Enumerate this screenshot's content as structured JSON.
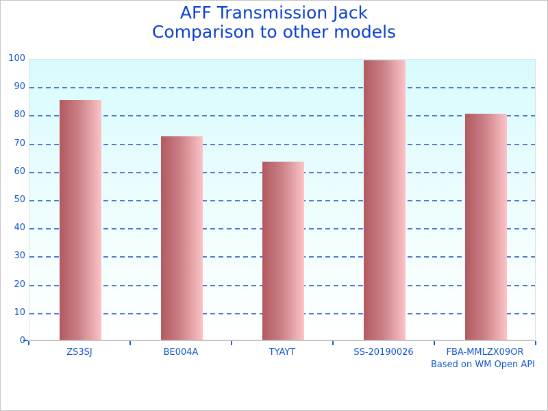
{
  "title": {
    "line1": "AFF Transmission Jack",
    "line2": "Comparison to other models"
  },
  "footer": {
    "note": "Based on WM Open API"
  },
  "chart_data": {
    "type": "bar",
    "title": "AFF Transmission Jack — Comparison to other models",
    "categories": [
      "ZS3SJ",
      "BE004A",
      "TYAYT",
      "SS-20190026",
      "FBA-MMLZX09OR"
    ],
    "values": [
      85,
      72,
      63,
      99,
      80
    ],
    "xlabel": "",
    "ylabel": "",
    "ylim": [
      0,
      100
    ],
    "yticks": [
      0,
      10,
      20,
      30,
      40,
      50,
      60,
      70,
      80,
      90,
      100
    ],
    "grid": "horizontal-dashed",
    "legend": "none",
    "annotation": "Based on WM Open API",
    "colors": {
      "title_text": "#0b3fd2",
      "axis_text": "#1155cc",
      "grid_line": "#3a69cd",
      "bar_gradient_left": "#b2595f",
      "bar_gradient_right": "#fcc3c7",
      "plot_bg_top": "#d8fbfd",
      "plot_bg_bottom": "#ffffff"
    }
  }
}
